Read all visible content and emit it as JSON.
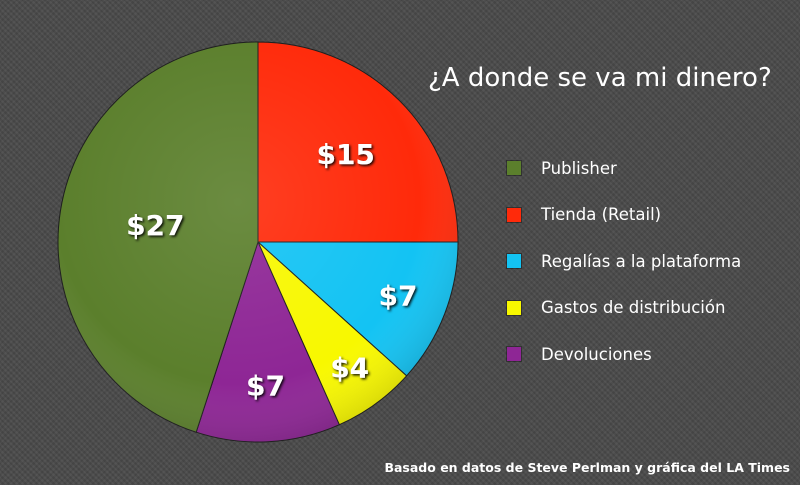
{
  "chart_data": {
    "type": "pie",
    "title": "¿A donde se va mi dinero?",
    "slices": [
      {
        "label": "Publisher",
        "value": 27,
        "value_label": "$27",
        "color": "#5b7f2c"
      },
      {
        "label": "Tienda (Retail)",
        "value": 15,
        "value_label": "$15",
        "color": "#ff2a0a"
      },
      {
        "label": "Regalías a la plataforma",
        "value": 7,
        "value_label": "$7",
        "color": "#13c3f3"
      },
      {
        "label": "Gastos de distribución",
        "value": 4,
        "value_label": "$4",
        "color": "#f8f800"
      },
      {
        "label": "Devoluciones",
        "value": 7,
        "value_label": "$7",
        "color": "#8e2695"
      }
    ],
    "legend_position": "right",
    "grid": false
  },
  "source_note": "Basado en datos de Steve Perlman y gráfica del LA Times"
}
